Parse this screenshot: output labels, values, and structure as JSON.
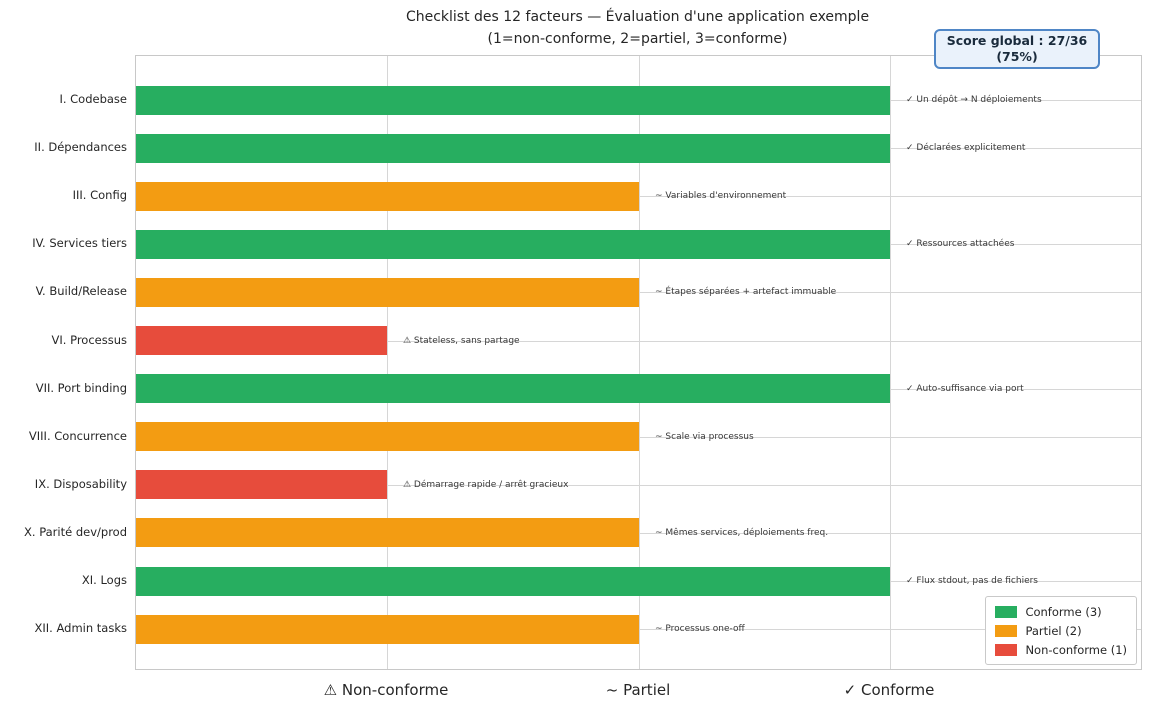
{
  "chart_data": {
    "type": "bar",
    "orientation": "horizontal",
    "title": "Checklist des 12 facteurs — Évaluation d'une application exemple",
    "subtitle": "(1=non-conforme, 2=partiel, 3=conforme)",
    "xlim": [
      0,
      4
    ],
    "grid": true,
    "categories": [
      "I. Codebase",
      "II. Dépendances",
      "III. Config",
      "IV. Services tiers",
      "V. Build/Release",
      "VI. Processus",
      "VII. Port binding",
      "VIII. Concurrence",
      "IX. Disposability",
      "X. Parité dev/prod",
      "XI. Logs",
      "XII. Admin tasks"
    ],
    "values": [
      3,
      3,
      2,
      3,
      2,
      1,
      3,
      2,
      1,
      2,
      3,
      2
    ],
    "annotations": [
      "✓ Un dépôt → N déploiements",
      "✓ Déclarées explicitement",
      "~ Variables d'environnement",
      "✓ Ressources attachées",
      "~ Étapes séparées + artefact immuable",
      "⚠ Stateless, sans partage",
      "✓ Auto-suffisance via port",
      "~ Scale via processus",
      "⚠ Démarrage rapide / arrêt gracieux",
      "~ Mêmes services, déploiements freq.",
      "✓ Flux stdout, pas de fichiers",
      "~ Processus one-off"
    ],
    "status_colors": {
      "1": "#e74c3c",
      "2": "#f39c12",
      "3": "#27ae60"
    },
    "xticks": [
      {
        "value": 1,
        "label": "⚠ Non-conforme"
      },
      {
        "value": 2,
        "label": "~ Partiel"
      },
      {
        "value": 3,
        "label": "✓ Conforme"
      }
    ],
    "legend": {
      "position": "lower right",
      "entries": [
        {
          "label": "Conforme (3)",
          "color": "#27ae60"
        },
        {
          "label": "Partiel (2)",
          "color": "#f39c12"
        },
        {
          "label": "Non-conforme (1)",
          "color": "#e74c3c"
        }
      ]
    }
  },
  "score_badge": {
    "line1": "Score global : 27/36",
    "line2": "(75%)",
    "bg_color": "#eaf2fb",
    "border_color": "#4f86c6",
    "text_color": "#1a2b3c"
  }
}
